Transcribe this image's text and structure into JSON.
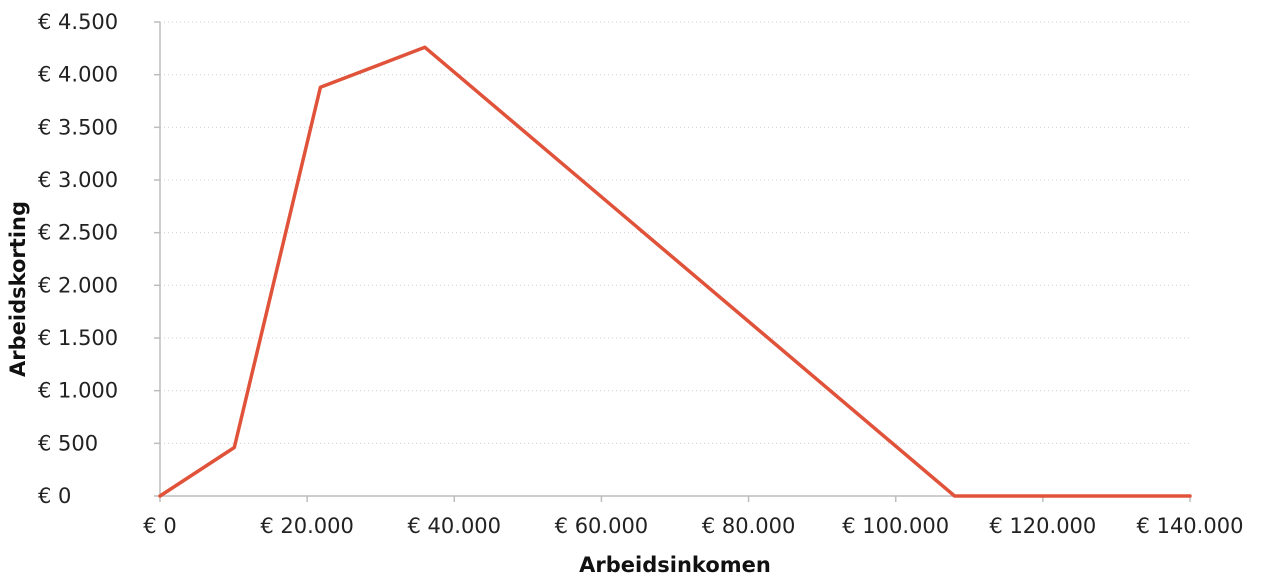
{
  "chart_data": {
    "type": "line",
    "title": "",
    "xlabel": "Arbeidsinkomen",
    "ylabel": "Arbeidskorting",
    "xlim": [
      0,
      140000
    ],
    "ylim": [
      0,
      4500
    ],
    "x_ticks": [
      0,
      20000,
      40000,
      60000,
      80000,
      100000,
      120000,
      140000
    ],
    "x_tick_labels": [
      "€ 0",
      "€ 20.000",
      "€ 40.000",
      "€ 60.000",
      "€ 80.000",
      "€ 100.000",
      "€ 120.000",
      "€ 140.000"
    ],
    "y_ticks": [
      0,
      500,
      1000,
      1500,
      2000,
      2500,
      3000,
      3500,
      4000,
      4500
    ],
    "y_tick_labels": [
      "€ 0",
      "€ 500",
      "€ 1.000",
      "€ 1.500",
      "€ 2.000",
      "€ 2.500",
      "€ 3.000",
      "€ 3.500",
      "€ 4.000",
      "€ 4.500"
    ],
    "grid": true,
    "legend": "none",
    "series": [
      {
        "color": "#e0533a",
        "x": [
          0,
          10100,
          21800,
          36000,
          108000,
          140000
        ],
        "y": [
          0,
          460,
          3880,
          4260,
          0,
          0
        ]
      }
    ]
  }
}
